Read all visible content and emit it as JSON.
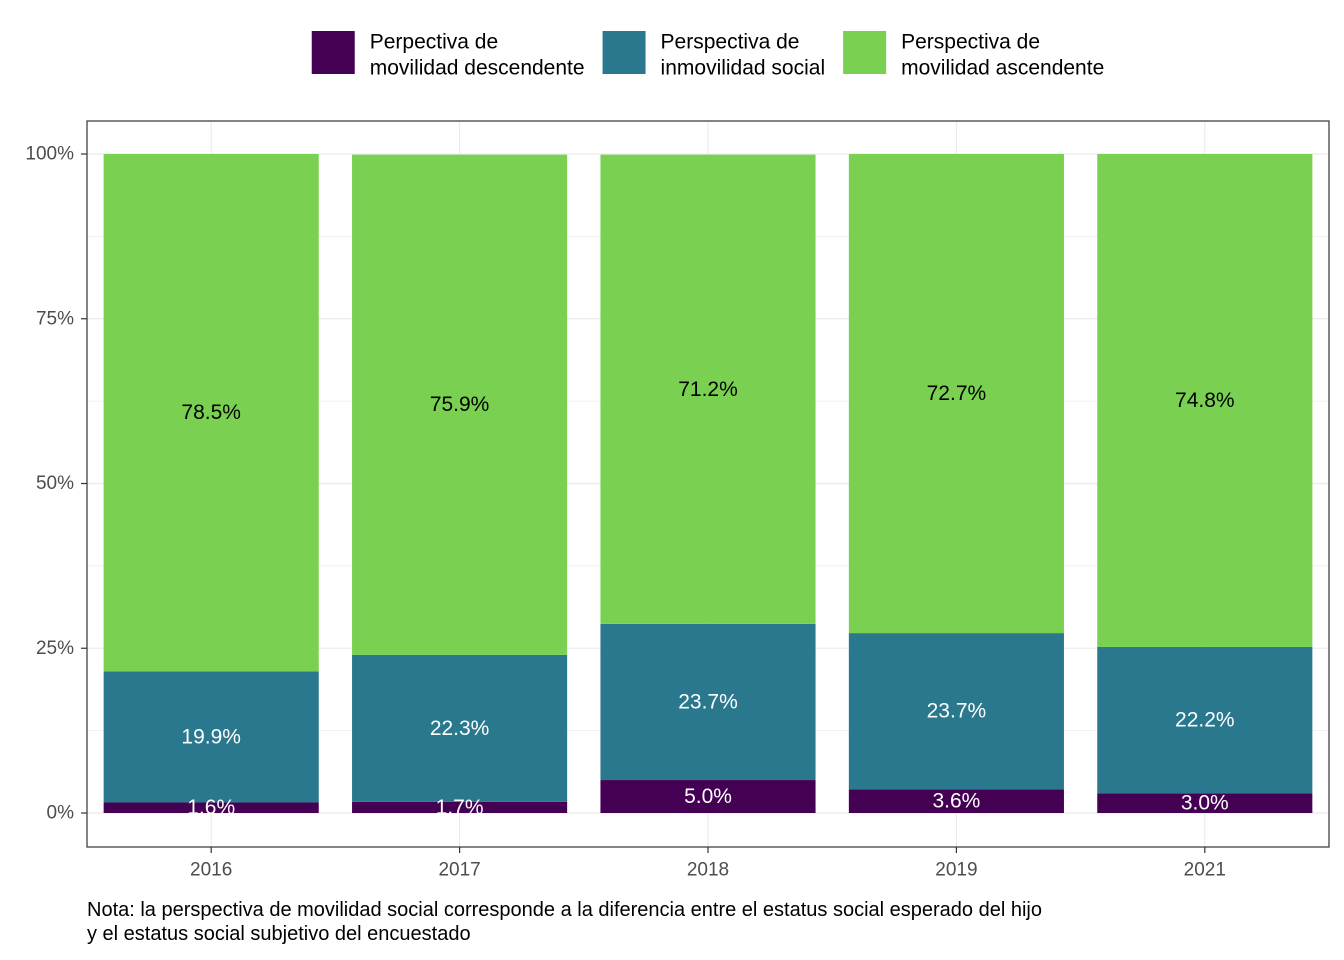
{
  "chart_data": {
    "type": "bar",
    "stacked": true,
    "categories": [
      "2016",
      "2017",
      "2018",
      "2019",
      "2021"
    ],
    "series": [
      {
        "name": "Perpectiva de movilidad descendente",
        "name_lines": [
          "Perpectiva de",
          "movilidad descendente"
        ],
        "color": "#440154",
        "label_color": "#ffffff",
        "values": [
          1.6,
          1.7,
          5.0,
          3.6,
          3.0
        ],
        "labels": [
          "1.6%",
          "1.7%",
          "5.0%",
          "3.6%",
          "3.0%"
        ]
      },
      {
        "name": "Perspectiva de inmovilidad social",
        "name_lines": [
          "Perspectiva de",
          "inmovilidad social"
        ],
        "color": "#2a788e",
        "label_color": "#ffffff",
        "values": [
          19.9,
          22.3,
          23.7,
          23.7,
          22.2
        ],
        "labels": [
          "19.9%",
          "22.3%",
          "23.7%",
          "23.7%",
          "22.2%"
        ]
      },
      {
        "name": "Perspectiva de movilidad ascendente",
        "name_lines": [
          "Perspectiva de",
          "movilidad ascendente"
        ],
        "color": "#7ad151",
        "label_color": "#000000",
        "values": [
          78.5,
          75.9,
          71.2,
          72.7,
          74.8
        ],
        "labels": [
          "78.5%",
          "75.9%",
          "71.2%",
          "72.7%",
          "74.8%"
        ]
      }
    ],
    "y_ticks": [
      0,
      25,
      50,
      75,
      100
    ],
    "y_tick_labels": [
      "0%",
      "25%",
      "50%",
      "75%",
      "100%"
    ],
    "ylim": [
      0,
      100
    ],
    "grid": true,
    "legend_position": "top",
    "title": "",
    "xlabel": "",
    "ylabel": "",
    "note_lines": [
      "Nota: la perspectiva de movilidad social corresponde a la diferencia entre el estatus social esperado del hijo",
      "y el estatus social subjetivo del encuestado"
    ]
  }
}
